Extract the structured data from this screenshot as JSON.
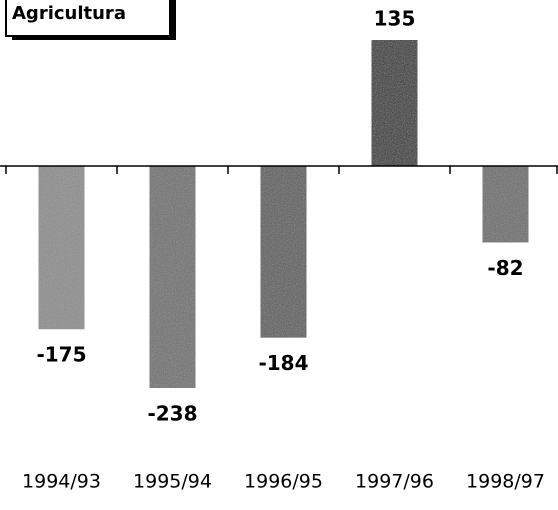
{
  "chart_data": {
    "type": "bar",
    "title": "Agricultura",
    "categories": [
      "1994/93",
      "1995/94",
      "1996/95",
      "1997/96",
      "1998/97"
    ],
    "values": [
      -175,
      -238,
      -184,
      135,
      -82
    ],
    "colors": [
      "#8c8c8c",
      "#6e6e6e",
      "#5a5a5a",
      "#2e2e2e",
      "#6a6a6a"
    ]
  }
}
